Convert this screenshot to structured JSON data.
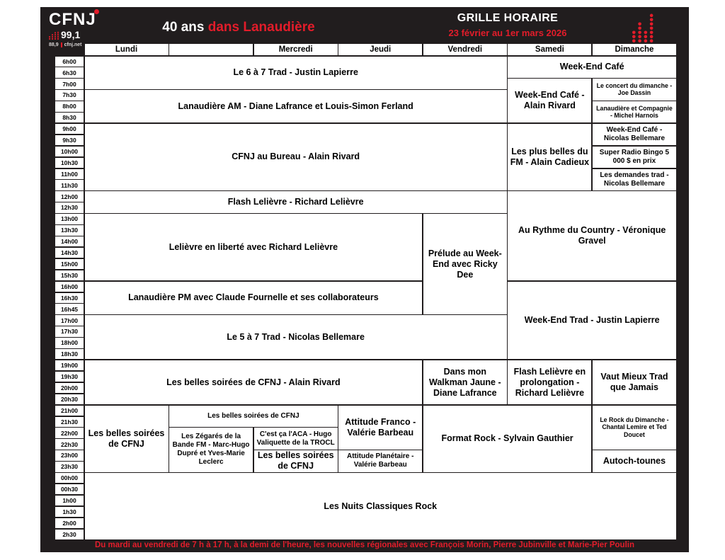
{
  "colors": {
    "frame_black": "#211d1e",
    "accent_red": "#e31c2a",
    "cell_white": "#ffffff",
    "text_black": "#000000"
  },
  "header": {
    "logo": {
      "station": "CFNJ",
      "freq_main": "99,1",
      "freq_alt": "88,9",
      "site": "cfnj.net"
    },
    "anniversary_white": "40 ans",
    "anniversary_red": "dans Lanaudière",
    "title": "GRILLE HORAIRE",
    "date_range": "23 février au 1er mars 2026"
  },
  "schedule": {
    "days": [
      "Lundi",
      "",
      "Mercredi",
      "Jeudi",
      "Vendredi",
      "Samedi",
      "Dimanche"
    ],
    "times": [
      "6h00",
      "6h30",
      "7h00",
      "7h30",
      "8h00",
      "8h30",
      "9h00",
      "9h30",
      "10h00",
      "10h30",
      "11h00",
      "11h30",
      "12h00",
      "12h30",
      "13h00",
      "13h30",
      "14h00",
      "14h30",
      "15h00",
      "15h30",
      "16h00",
      "16h30",
      "16h45",
      "17h00",
      "17h30",
      "18h00",
      "18h30",
      "19h00",
      "19h30",
      "20h00",
      "20h30",
      "21h00",
      "21h30",
      "22h00",
      "22h30",
      "23h00",
      "23h30",
      "00h00",
      "00h30",
      "1h00",
      "1h30",
      "2h00",
      "2h30"
    ],
    "programs": [
      {
        "title": "Le 6 à 7 Trad - Justin Lapierre",
        "day_start": 1,
        "day_span": 5,
        "time_start": "6h00",
        "time_end": "7h00",
        "size": "lg"
      },
      {
        "title": "Week-End Café",
        "day_start": 6,
        "day_span": 2,
        "time_start": "6h00",
        "time_end": "6h30",
        "size": "lg"
      },
      {
        "title": "Lanaudière AM - Diane Lafrance et Louis-Simon Ferland",
        "day_start": 1,
        "day_span": 5,
        "time_start": "7h30",
        "time_end": "8h30",
        "size": "lg"
      },
      {
        "title": "Week-End Café - Alain Rivard",
        "day_start": 6,
        "day_span": 1,
        "time_start": "7h00",
        "time_end": "8h30",
        "size": "lg"
      },
      {
        "title": "Le concert du dimanche - Joe Dassin",
        "day_start": 7,
        "day_span": 1,
        "time_start": "7h00",
        "time_end": "7h30",
        "size": "sm"
      },
      {
        "title": "Lanaudière et Compagnie - Michel Harnois",
        "day_start": 7,
        "day_span": 1,
        "time_start": "8h00",
        "time_end": "8h30",
        "size": "sm"
      },
      {
        "title": "CFNJ au Bureau - Alain Rivard",
        "day_start": 1,
        "day_span": 5,
        "time_start": "9h00",
        "time_end": "11h30",
        "size": "lg"
      },
      {
        "title": "Les plus belles du FM - Alain Cadieux",
        "day_start": 6,
        "day_span": 1,
        "time_start": "9h00",
        "time_end": "11h30",
        "size": "lg"
      },
      {
        "title": "Week-End Café - Nicolas Bellemare",
        "day_start": 7,
        "day_span": 1,
        "time_start": "9h00",
        "time_end": "9h30",
        "size": "md"
      },
      {
        "title": "Super Radio Bingo 5 000 $ en prix",
        "day_start": 7,
        "day_span": 1,
        "time_start": "10h00",
        "time_end": "10h30",
        "size": "md"
      },
      {
        "title": "Les demandes trad - Nicolas Bellemare",
        "day_start": 7,
        "day_span": 1,
        "time_start": "11h00",
        "time_end": "11h30",
        "size": "md"
      },
      {
        "title": "Flash Lelièvre - Richard Lelièvre",
        "day_start": 1,
        "day_span": 5,
        "time_start": "12h00",
        "time_end": "12h30",
        "size": "lg"
      },
      {
        "title": "Au Rythme du Country - Véronique Gravel",
        "day_start": 6,
        "day_span": 2,
        "time_start": "12h00",
        "time_end": "15h30",
        "size": "lg"
      },
      {
        "title": "Lelièvre en liberté avec Richard Lelièvre",
        "day_start": 1,
        "day_span": 4,
        "time_start": "13h00",
        "time_end": "15h30",
        "size": "lg"
      },
      {
        "title": "Prélude au Week-End avec Ricky Dee",
        "day_start": 5,
        "day_span": 1,
        "time_start": "13h00",
        "time_end": "16h45",
        "size": "lg"
      },
      {
        "title": "Lanaudière PM avec Claude Fournelle et ses collaborateurs",
        "day_start": 1,
        "day_span": 4,
        "time_start": "16h00",
        "time_end": "16h45",
        "size": "lg"
      },
      {
        "title": "Week-End Trad - Justin Lapierre",
        "day_start": 6,
        "day_span": 2,
        "time_start": "16h00",
        "time_end": "18h30",
        "size": "lg"
      },
      {
        "title": "Le 5 à 7 Trad - Nicolas Bellemare",
        "day_start": 1,
        "day_span": 5,
        "time_start": "17h00",
        "time_end": "18h30",
        "size": "lg"
      },
      {
        "title": "Les belles soirées de CFNJ - Alain Rivard",
        "day_start": 1,
        "day_span": 4,
        "time_start": "19h00",
        "time_end": "20h30",
        "size": "lg"
      },
      {
        "title": "Dans mon Walkman Jaune - Diane Lafrance",
        "day_start": 5,
        "day_span": 1,
        "time_start": "19h00",
        "time_end": "20h30",
        "size": "lg"
      },
      {
        "title": "Flash Lelièvre en prolongation - Richard Lelièvre",
        "day_start": 6,
        "day_span": 1,
        "time_start": "19h00",
        "time_end": "20h30",
        "size": "lg"
      },
      {
        "title": "Vaut Mieux Trad que Jamais",
        "day_start": 7,
        "day_span": 1,
        "time_start": "19h00",
        "time_end": "20h30",
        "size": "lg"
      },
      {
        "title": "Les belles soirées de CFNJ",
        "day_start": 1,
        "day_span": 1,
        "time_start": "21h00",
        "time_end": "23h30",
        "size": "lg"
      },
      {
        "title": "Les belles soirées de CFNJ",
        "day_start": 2,
        "day_span": 2,
        "time_start": "21h00",
        "time_end": "21h30",
        "size": "md"
      },
      {
        "title": "Les Zégarés de la Bande FM - Marc-Hugo Dupré et Yves-Marie Leclerc",
        "day_start": 2,
        "day_span": 1,
        "time_start": "22h00",
        "time_end": "23h30",
        "size": "md"
      },
      {
        "title": "C'est ça l'ACA - Hugo Valiquette de la TROCL",
        "day_start": 3,
        "day_span": 1,
        "time_start": "22h00",
        "time_end": "22h30",
        "size": "md"
      },
      {
        "title": "Les belles soirées de CFNJ",
        "day_start": 3,
        "day_span": 1,
        "time_start": "23h00",
        "time_end": "23h30",
        "size": "lg"
      },
      {
        "title": "Attitude Franco - Valérie Barbeau",
        "day_start": 4,
        "day_span": 1,
        "time_start": "21h00",
        "time_end": "22h30",
        "size": "lg"
      },
      {
        "title": "Attitude Planétaire - Valérie Barbeau",
        "day_start": 4,
        "day_span": 1,
        "time_start": "23h00",
        "time_end": "23h30",
        "size": "md"
      },
      {
        "title": "Format Rock - Sylvain Gauthier",
        "day_start": 5,
        "day_span": 2,
        "time_start": "21h00",
        "time_end": "23h30",
        "size": "lg"
      },
      {
        "title": "Le Rock du Dimanche - Chantal Lemire et Ted Doucet",
        "day_start": 7,
        "day_span": 1,
        "time_start": "21h00",
        "time_end": "22h30",
        "size": "sm"
      },
      {
        "title": "Autoch-tounes",
        "day_start": 7,
        "day_span": 1,
        "time_start": "23h00",
        "time_end": "23h30",
        "size": "lg"
      },
      {
        "title": "Les Nuits Classiques Rock",
        "day_start": 1,
        "day_span": 7,
        "time_start": "00h00",
        "time_end": "2h30",
        "size": "lg"
      }
    ]
  },
  "footer": {
    "text": "Du mardi au vendredi de 7 h à 17 h, à la demi de l'heure, les nouvelles régionales avec François Morin, Pierre Jubinville et Marie-Pier Poulin"
  }
}
